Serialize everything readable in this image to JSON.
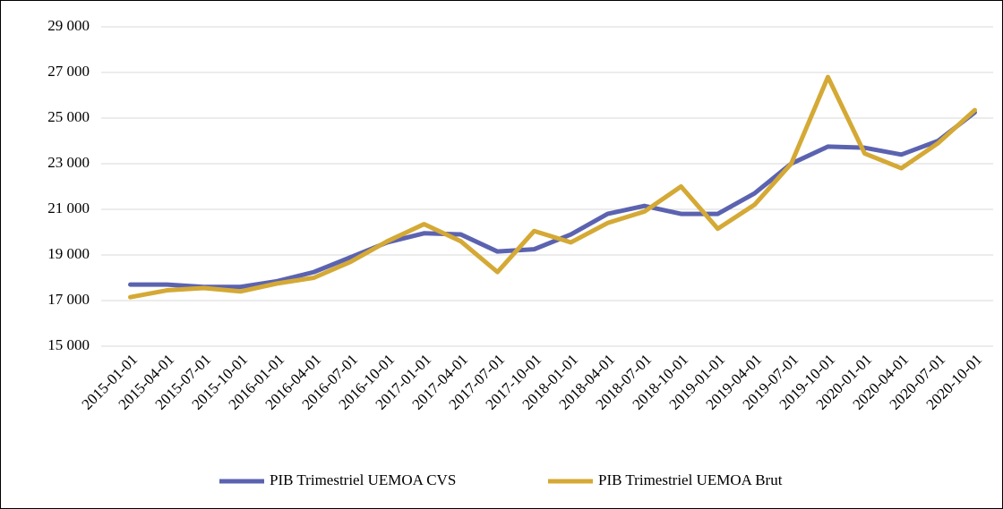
{
  "chart_data": {
    "type": "line",
    "categories": [
      "2015-01-01",
      "2015-04-01",
      "2015-07-01",
      "2015-10-01",
      "2016-01-01",
      "2016-04-01",
      "2016-07-01",
      "2016-10-01",
      "2017-01-01",
      "2017-04-01",
      "2017-07-01",
      "2017-10-01",
      "2018-01-01",
      "2018-04-01",
      "2018-07-01",
      "2018-10-01",
      "2019-01-01",
      "2019-04-01",
      "2019-07-01",
      "2019-10-01",
      "2020-01-01",
      "2020-04-01",
      "2020-07-01",
      "2020-10-01"
    ],
    "series": [
      {
        "name": "PIB Trimestriel UEMOA CVS",
        "color": "#5b63b0",
        "values": [
          17700,
          17700,
          17600,
          17600,
          17850,
          18250,
          18900,
          19550,
          19950,
          19900,
          19150,
          19250,
          19900,
          20800,
          21150,
          20800,
          20800,
          21700,
          23000,
          23750,
          23700,
          23400,
          24000,
          25250
        ]
      },
      {
        "name": "PIB Trimestriel UEMOA Brut",
        "color": "#d4a935",
        "values": [
          17150,
          17450,
          17550,
          17400,
          17750,
          18000,
          18700,
          19600,
          20350,
          19600,
          18250,
          20050,
          19550,
          20400,
          20900,
          22000,
          20150,
          21200,
          23000,
          26800,
          23450,
          22800,
          23900,
          25350
        ]
      }
    ],
    "ylim": [
      15000,
      29000
    ],
    "yticks": [
      {
        "value": 15000,
        "label": "15 000"
      },
      {
        "value": 17000,
        "label": "17 000"
      },
      {
        "value": 19000,
        "label": "19 000"
      },
      {
        "value": 21000,
        "label": "21 000"
      },
      {
        "value": 23000,
        "label": "23 000"
      },
      {
        "value": 25000,
        "label": "25 000"
      },
      {
        "value": 27000,
        "label": "27 000"
      },
      {
        "value": 29000,
        "label": "29 000"
      }
    ],
    "grid": true,
    "legend": "bottom"
  }
}
